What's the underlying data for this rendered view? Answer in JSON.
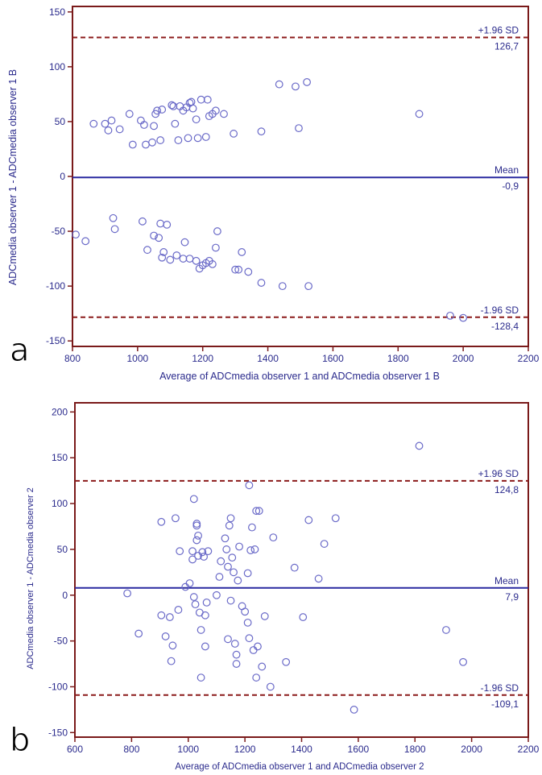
{
  "chart_data": [
    {
      "type": "scatter",
      "panel_label": "a",
      "xlabel": "Average of ADCmedia observer 1 and ADCmedia observer 1 B",
      "ylabel": "ADCmedia observer 1 - ADCmedia observer 1 B",
      "xlim": [
        800,
        2200
      ],
      "ylim": [
        -155,
        155
      ],
      "xticks": [
        800,
        1000,
        1200,
        1400,
        1600,
        1800,
        2000,
        2200
      ],
      "yticks": [
        -150,
        -100,
        -50,
        0,
        50,
        100,
        150
      ],
      "grid": false,
      "colors": {
        "frame": "#7a1a1a",
        "mean": "#2a2aa0",
        "limits": "#8b1a1a",
        "markers": "#6a6ac8"
      },
      "reference_lines": [
        {
          "kind": "upper",
          "y": 126.7,
          "label": "+1.96 SD",
          "value_label": "126,7"
        },
        {
          "kind": "mean",
          "y": -0.9,
          "label": "Mean",
          "value_label": "-0,9"
        },
        {
          "kind": "lower",
          "y": -128.4,
          "label": "-1.96 SD",
          "value_label": "-128,4"
        }
      ],
      "points": [
        [
          865,
          48
        ],
        [
          900,
          48
        ],
        [
          910,
          42
        ],
        [
          920,
          51
        ],
        [
          945,
          43
        ],
        [
          975,
          57
        ],
        [
          985,
          29
        ],
        [
          1010,
          51
        ],
        [
          1020,
          47
        ],
        [
          1025,
          29
        ],
        [
          1045,
          31
        ],
        [
          1050,
          46
        ],
        [
          1055,
          57
        ],
        [
          1060,
          60
        ],
        [
          1070,
          33
        ],
        [
          1075,
          61
        ],
        [
          1105,
          65
        ],
        [
          1110,
          64
        ],
        [
          1115,
          48
        ],
        [
          1125,
          33
        ],
        [
          1130,
          64
        ],
        [
          1140,
          60
        ],
        [
          1150,
          63
        ],
        [
          1155,
          35
        ],
        [
          1160,
          67
        ],
        [
          1165,
          68
        ],
        [
          1170,
          62
        ],
        [
          1180,
          52
        ],
        [
          1185,
          35
        ],
        [
          1195,
          70
        ],
        [
          1210,
          36
        ],
        [
          1215,
          70
        ],
        [
          1220,
          55
        ],
        [
          1230,
          57
        ],
        [
          1240,
          60
        ],
        [
          1265,
          57
        ],
        [
          1295,
          39
        ],
        [
          1380,
          41
        ],
        [
          1435,
          84
        ],
        [
          1485,
          82
        ],
        [
          1495,
          44
        ],
        [
          1520,
          86
        ],
        [
          1865,
          57
        ],
        [
          810,
          -53
        ],
        [
          840,
          -59
        ],
        [
          925,
          -38
        ],
        [
          930,
          -48
        ],
        [
          1015,
          -41
        ],
        [
          1030,
          -67
        ],
        [
          1050,
          -54
        ],
        [
          1065,
          -56
        ],
        [
          1070,
          -43
        ],
        [
          1075,
          -74
        ],
        [
          1080,
          -69
        ],
        [
          1090,
          -44
        ],
        [
          1100,
          -76
        ],
        [
          1120,
          -72
        ],
        [
          1140,
          -75
        ],
        [
          1145,
          -60
        ],
        [
          1160,
          -75
        ],
        [
          1180,
          -77
        ],
        [
          1190,
          -84
        ],
        [
          1200,
          -81
        ],
        [
          1210,
          -79
        ],
        [
          1220,
          -77
        ],
        [
          1230,
          -80
        ],
        [
          1240,
          -65
        ],
        [
          1245,
          -50
        ],
        [
          1300,
          -85
        ],
        [
          1310,
          -85
        ],
        [
          1320,
          -69
        ],
        [
          1340,
          -87
        ],
        [
          1380,
          -97
        ],
        [
          1445,
          -100
        ],
        [
          1525,
          -100
        ],
        [
          1960,
          -127
        ],
        [
          2000,
          -129
        ]
      ]
    },
    {
      "type": "scatter",
      "panel_label": "b",
      "xlabel": "Average of ADCmedia observer 1 and ADCmedia observer 2",
      "ylabel": "ADCmedia observer 1 - ADCmedia observer 2",
      "xlim": [
        600,
        2200
      ],
      "ylim": [
        -155,
        210
      ],
      "xticks": [
        600,
        800,
        1000,
        1200,
        1400,
        1600,
        1800,
        2000,
        2200
      ],
      "yticks": [
        -150,
        -100,
        -50,
        0,
        50,
        100,
        150,
        200
      ],
      "grid": false,
      "colors": {
        "frame": "#7a1a1a",
        "mean": "#2a2aa0",
        "limits": "#8b1a1a",
        "markers": "#6a6ac8"
      },
      "reference_lines": [
        {
          "kind": "upper",
          "y": 124.8,
          "label": "+1.96 SD",
          "value_label": "124,8"
        },
        {
          "kind": "mean",
          "y": 7.9,
          "label": "Mean",
          "value_label": "7,9"
        },
        {
          "kind": "lower",
          "y": -109.1,
          "label": "-1.96 SD",
          "value_label": "-109,1"
        }
      ],
      "points": [
        [
          785,
          2
        ],
        [
          825,
          -42
        ],
        [
          905,
          80
        ],
        [
          905,
          -22
        ],
        [
          920,
          -45
        ],
        [
          935,
          -24
        ],
        [
          940,
          -72
        ],
        [
          945,
          -55
        ],
        [
          955,
          84
        ],
        [
          965,
          -16
        ],
        [
          970,
          48
        ],
        [
          990,
          9
        ],
        [
          1005,
          13
        ],
        [
          1015,
          48
        ],
        [
          1015,
          39
        ],
        [
          1020,
          -2
        ],
        [
          1020,
          105
        ],
        [
          1025,
          -10
        ],
        [
          1030,
          76
        ],
        [
          1030,
          78
        ],
        [
          1030,
          60
        ],
        [
          1035,
          65
        ],
        [
          1035,
          43
        ],
        [
          1040,
          -19
        ],
        [
          1045,
          -90
        ],
        [
          1045,
          -38
        ],
        [
          1050,
          47
        ],
        [
          1055,
          42
        ],
        [
          1060,
          -22
        ],
        [
          1060,
          -56
        ],
        [
          1065,
          -8
        ],
        [
          1070,
          48
        ],
        [
          1100,
          0
        ],
        [
          1110,
          20
        ],
        [
          1115,
          37
        ],
        [
          1130,
          62
        ],
        [
          1135,
          50
        ],
        [
          1140,
          31
        ],
        [
          1140,
          -48
        ],
        [
          1145,
          76
        ],
        [
          1150,
          84
        ],
        [
          1150,
          -6
        ],
        [
          1155,
          41
        ],
        [
          1160,
          25
        ],
        [
          1165,
          -53
        ],
        [
          1170,
          -65
        ],
        [
          1170,
          -75
        ],
        [
          1175,
          16
        ],
        [
          1180,
          53
        ],
        [
          1190,
          -12
        ],
        [
          1200,
          -18
        ],
        [
          1210,
          24
        ],
        [
          1210,
          -30
        ],
        [
          1215,
          -47
        ],
        [
          1215,
          120
        ],
        [
          1220,
          49
        ],
        [
          1225,
          74
        ],
        [
          1230,
          -60
        ],
        [
          1235,
          50
        ],
        [
          1240,
          92
        ],
        [
          1240,
          -90
        ],
        [
          1245,
          -56
        ],
        [
          1250,
          92
        ],
        [
          1260,
          -78
        ],
        [
          1270,
          -23
        ],
        [
          1290,
          -100
        ],
        [
          1300,
          63
        ],
        [
          1345,
          -73
        ],
        [
          1375,
          30
        ],
        [
          1405,
          -24
        ],
        [
          1425,
          82
        ],
        [
          1460,
          18
        ],
        [
          1480,
          56
        ],
        [
          1520,
          84
        ],
        [
          1585,
          -125
        ],
        [
          1815,
          163
        ],
        [
          1910,
          -38
        ],
        [
          1970,
          -73
        ]
      ]
    }
  ]
}
